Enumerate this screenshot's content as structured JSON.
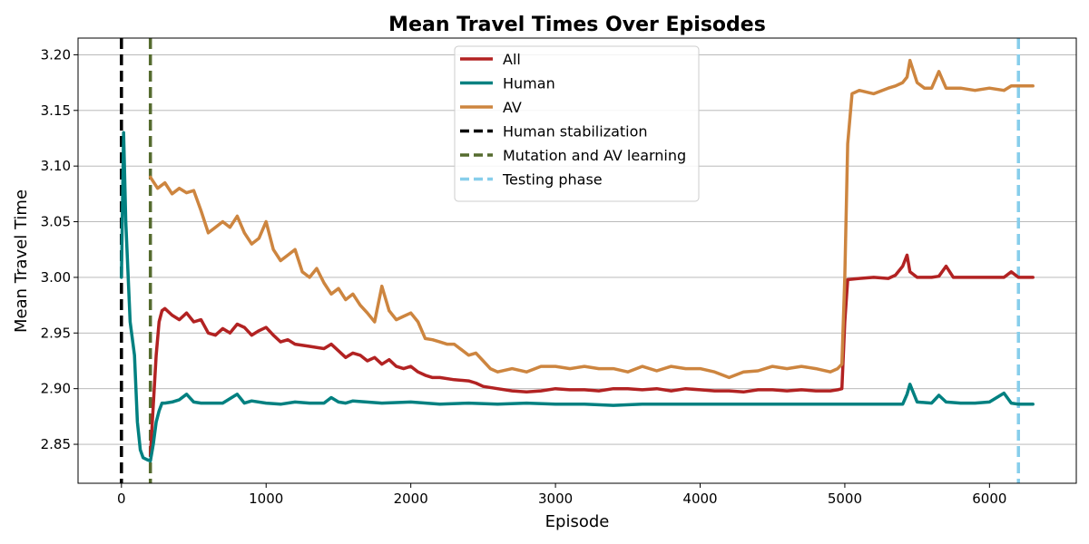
{
  "chart_data": {
    "type": "line",
    "title": "Mean Travel Times Over Episodes",
    "xlabel": "Episode",
    "ylabel": "Mean Travel Time",
    "xlim": [
      -300,
      6600
    ],
    "ylim": [
      2.815,
      3.215
    ],
    "x_ticks": [
      0,
      1000,
      2000,
      3000,
      4000,
      5000,
      6000
    ],
    "x_tick_labels": [
      "0",
      "1000",
      "2000",
      "3000",
      "4000",
      "5000",
      "6000"
    ],
    "y_ticks": [
      2.85,
      2.9,
      2.95,
      3.0,
      3.05,
      3.1,
      3.15,
      3.2
    ],
    "y_tick_labels": [
      "2.85",
      "2.90",
      "2.95",
      "3.00",
      "3.05",
      "3.10",
      "3.15",
      "3.20"
    ],
    "grid": "horizontal",
    "legend_position": "top-center",
    "series": [
      {
        "name": "All",
        "color": "#b22222",
        "x": [
          200,
          240,
          260,
          280,
          300,
          350,
          400,
          450,
          500,
          550,
          600,
          650,
          700,
          750,
          800,
          850,
          900,
          950,
          1000,
          1050,
          1100,
          1150,
          1200,
          1300,
          1400,
          1450,
          1500,
          1550,
          1600,
          1650,
          1700,
          1750,
          1800,
          1850,
          1900,
          1950,
          2000,
          2050,
          2100,
          2150,
          2200,
          2300,
          2400,
          2450,
          2500,
          2600,
          2700,
          2800,
          2900,
          3000,
          3100,
          3200,
          3300,
          3400,
          3500,
          3600,
          3700,
          3800,
          3900,
          4000,
          4100,
          4200,
          4300,
          4400,
          4500,
          4600,
          4700,
          4800,
          4900,
          4950,
          4980,
          5000,
          5020,
          5100,
          5200,
          5300,
          5350,
          5400,
          5430,
          5450,
          5500,
          5600,
          5650,
          5700,
          5750,
          5800,
          5900,
          6000,
          6100,
          6150,
          6200,
          6300
        ],
        "y": [
          2.84,
          2.93,
          2.96,
          2.97,
          2.972,
          2.966,
          2.962,
          2.968,
          2.96,
          2.962,
          2.95,
          2.948,
          2.954,
          2.95,
          2.958,
          2.955,
          2.948,
          2.952,
          2.955,
          2.948,
          2.942,
          2.944,
          2.94,
          2.938,
          2.936,
          2.94,
          2.934,
          2.928,
          2.932,
          2.93,
          2.925,
          2.928,
          2.922,
          2.926,
          2.92,
          2.918,
          2.92,
          2.915,
          2.912,
          2.91,
          2.91,
          2.908,
          2.907,
          2.905,
          2.902,
          2.9,
          2.898,
          2.897,
          2.898,
          2.9,
          2.899,
          2.899,
          2.898,
          2.9,
          2.9,
          2.899,
          2.9,
          2.898,
          2.9,
          2.899,
          2.898,
          2.898,
          2.897,
          2.899,
          2.899,
          2.898,
          2.899,
          2.898,
          2.898,
          2.899,
          2.9,
          2.96,
          2.998,
          2.999,
          3.0,
          2.999,
          3.002,
          3.01,
          3.02,
          3.005,
          3.0,
          3.0,
          3.001,
          3.01,
          3.0,
          3.0,
          3.0,
          3.0,
          3.0,
          3.005,
          3.0,
          3.0
        ]
      },
      {
        "name": "Human",
        "color": "#008080",
        "x": [
          0,
          15,
          30,
          60,
          90,
          110,
          130,
          150,
          180,
          200,
          220,
          240,
          260,
          280,
          300,
          350,
          400,
          450,
          500,
          550,
          600,
          700,
          800,
          850,
          900,
          1000,
          1100,
          1200,
          1300,
          1400,
          1450,
          1500,
          1550,
          1600,
          1800,
          2000,
          2200,
          2400,
          2600,
          2800,
          3000,
          3200,
          3400,
          3600,
          3800,
          4000,
          4200,
          4400,
          4600,
          4800,
          5000,
          5200,
          5400,
          5430,
          5450,
          5500,
          5600,
          5650,
          5700,
          5800,
          5900,
          6000,
          6100,
          6150,
          6200,
          6300
        ],
        "y": [
          3.0,
          3.13,
          3.05,
          2.96,
          2.93,
          2.87,
          2.845,
          2.838,
          2.836,
          2.835,
          2.85,
          2.87,
          2.88,
          2.887,
          2.887,
          2.888,
          2.89,
          2.895,
          2.888,
          2.887,
          2.887,
          2.887,
          2.895,
          2.887,
          2.889,
          2.887,
          2.886,
          2.888,
          2.887,
          2.887,
          2.892,
          2.888,
          2.887,
          2.889,
          2.887,
          2.888,
          2.886,
          2.887,
          2.886,
          2.887,
          2.886,
          2.886,
          2.885,
          2.886,
          2.886,
          2.886,
          2.886,
          2.886,
          2.886,
          2.886,
          2.886,
          2.886,
          2.886,
          2.895,
          2.904,
          2.888,
          2.887,
          2.894,
          2.888,
          2.887,
          2.887,
          2.888,
          2.896,
          2.887,
          2.886,
          2.886
        ]
      },
      {
        "name": "AV",
        "color": "#cd853f",
        "x": [
          200,
          250,
          300,
          350,
          400,
          450,
          500,
          550,
          600,
          650,
          700,
          750,
          800,
          850,
          900,
          950,
          1000,
          1050,
          1100,
          1150,
          1200,
          1250,
          1300,
          1350,
          1400,
          1450,
          1500,
          1550,
          1600,
          1650,
          1700,
          1750,
          1800,
          1850,
          1900,
          1950,
          2000,
          2050,
          2100,
          2150,
          2200,
          2250,
          2300,
          2350,
          2400,
          2450,
          2500,
          2550,
          2600,
          2700,
          2800,
          2900,
          3000,
          3100,
          3200,
          3300,
          3400,
          3500,
          3600,
          3700,
          3800,
          3900,
          4000,
          4100,
          4200,
          4300,
          4400,
          4500,
          4600,
          4700,
          4800,
          4900,
          4950,
          4980,
          5000,
          5020,
          5050,
          5100,
          5200,
          5300,
          5350,
          5400,
          5430,
          5450,
          5500,
          5550,
          5600,
          5650,
          5700,
          5750,
          5800,
          5900,
          6000,
          6100,
          6150,
          6200,
          6300
        ],
        "y": [
          3.09,
          3.08,
          3.085,
          3.075,
          3.08,
          3.076,
          3.078,
          3.06,
          3.04,
          3.045,
          3.05,
          3.045,
          3.055,
          3.04,
          3.03,
          3.035,
          3.05,
          3.025,
          3.015,
          3.02,
          3.025,
          3.005,
          3.0,
          3.008,
          2.995,
          2.985,
          2.99,
          2.98,
          2.985,
          2.975,
          2.968,
          2.96,
          2.992,
          2.97,
          2.962,
          2.965,
          2.968,
          2.96,
          2.945,
          2.944,
          2.942,
          2.94,
          2.94,
          2.935,
          2.93,
          2.932,
          2.925,
          2.918,
          2.915,
          2.918,
          2.915,
          2.92,
          2.92,
          2.918,
          2.92,
          2.918,
          2.918,
          2.915,
          2.92,
          2.916,
          2.92,
          2.918,
          2.918,
          2.915,
          2.91,
          2.915,
          2.916,
          2.92,
          2.918,
          2.92,
          2.918,
          2.915,
          2.918,
          2.922,
          3.0,
          3.12,
          3.165,
          3.168,
          3.165,
          3.17,
          3.172,
          3.175,
          3.18,
          3.195,
          3.175,
          3.17,
          3.17,
          3.185,
          3.17,
          3.17,
          3.17,
          3.168,
          3.17,
          3.168,
          3.172,
          3.172,
          3.172
        ]
      }
    ],
    "vlines": [
      {
        "name": "Human stabilization",
        "x": 0,
        "color": "#000000"
      },
      {
        "name": "Mutation and AV learning",
        "x": 200,
        "color": "#556b2f"
      },
      {
        "name": "Testing phase",
        "x": 6200,
        "color": "#87ceeb"
      }
    ]
  }
}
